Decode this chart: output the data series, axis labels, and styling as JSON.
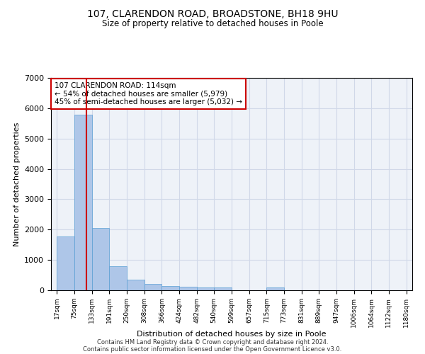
{
  "title1": "107, CLARENDON ROAD, BROADSTONE, BH18 9HU",
  "title2": "Size of property relative to detached houses in Poole",
  "xlabel": "Distribution of detached houses by size in Poole",
  "ylabel": "Number of detached properties",
  "footer1": "Contains HM Land Registry data © Crown copyright and database right 2024.",
  "footer2": "Contains public sector information licensed under the Open Government Licence v3.0.",
  "annotation_title": "107 CLARENDON ROAD: 114sqm",
  "annotation_line1": "← 54% of detached houses are smaller (5,979)",
  "annotation_line2": "45% of semi-detached houses are larger (5,032) →",
  "property_size": 114,
  "bin_edges": [
    17,
    75,
    133,
    191,
    250,
    308,
    366,
    424,
    482,
    540,
    599,
    657,
    715,
    773,
    831,
    889,
    947,
    1006,
    1064,
    1122,
    1180
  ],
  "bar_heights": [
    1780,
    5780,
    2060,
    800,
    340,
    200,
    150,
    110,
    100,
    90,
    0,
    0,
    90,
    0,
    0,
    0,
    0,
    0,
    0,
    0
  ],
  "bar_color": "#aec6e8",
  "bar_edge_color": "#5a9fd4",
  "grid_color": "#d0d8e8",
  "vline_color": "#cc0000",
  "bg_color": "#eef2f8",
  "annotation_box_color": "#cc0000",
  "ylim": [
    0,
    7000
  ],
  "yticks": [
    0,
    1000,
    2000,
    3000,
    4000,
    5000,
    6000,
    7000
  ]
}
